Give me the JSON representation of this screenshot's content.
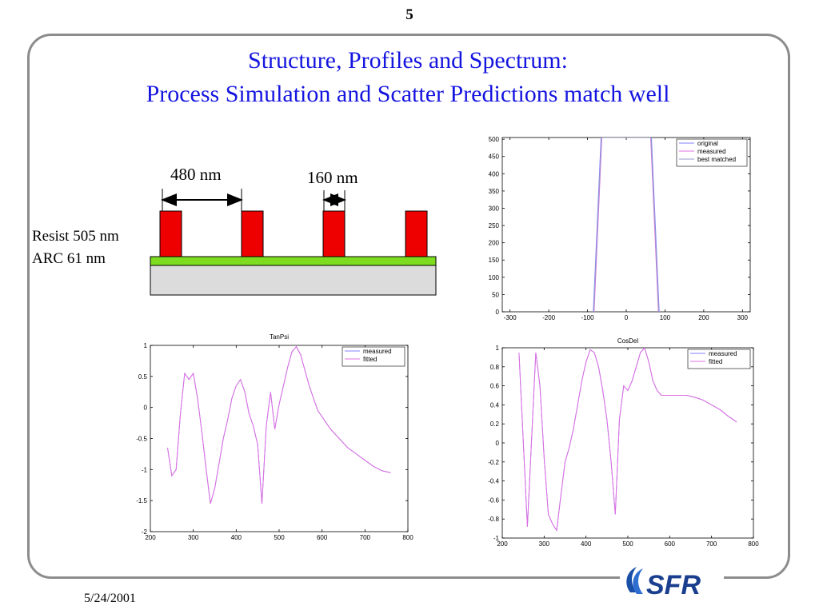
{
  "page_number": "5",
  "title_line1": "Structure, Profiles and Spectrum:",
  "title_line2": "Process Simulation and Scatter Predictions match well",
  "footer_date": "5/24/2001",
  "logo_text": "SFR",
  "structure": {
    "pitch_label": "480 nm",
    "width_label": "160 nm",
    "resist_label": "Resist 505 nm",
    "arc_label": "ARC 61 nm",
    "colors": {
      "resist": "#ee0000",
      "arc": "#7ddc1f",
      "substrate": "#dcdcdc"
    }
  },
  "colors": {
    "title": "#1515e0",
    "line_blue": "#8080ff",
    "line_magenta": "#e070e0"
  },
  "chart_data": [
    {
      "type": "line",
      "id": "profile",
      "title": "",
      "xlabel": "",
      "ylabel": "",
      "xlim": [
        -320,
        320
      ],
      "ylim": [
        0,
        505
      ],
      "xticks": [
        -300,
        -200,
        -100,
        0,
        100,
        200,
        300
      ],
      "yticks": [
        0,
        50,
        100,
        150,
        200,
        250,
        300,
        350,
        400,
        450,
        500
      ],
      "legend": "top-right",
      "series": [
        {
          "name": "original",
          "x": [
            -85,
            -65,
            65,
            85
          ],
          "y": [
            0,
            505,
            505,
            0
          ]
        },
        {
          "name": "measured",
          "x": [
            -83,
            -63,
            63,
            83
          ],
          "y": [
            0,
            505,
            505,
            0
          ]
        },
        {
          "name": "best matched",
          "x": [
            -84,
            -64,
            64,
            84
          ],
          "y": [
            0,
            505,
            505,
            0
          ]
        }
      ]
    },
    {
      "type": "line",
      "id": "tanpsi",
      "title": "TanPsi",
      "xlabel": "",
      "ylabel": "",
      "xlim": [
        200,
        800
      ],
      "ylim": [
        -2,
        1
      ],
      "xticks": [
        200,
        300,
        400,
        500,
        600,
        700,
        800
      ],
      "yticks": [
        -2,
        -1.5,
        -1,
        -0.5,
        0,
        0.5,
        1
      ],
      "legend": "top-right",
      "series": [
        {
          "name": "measured",
          "x": [
            240,
            250,
            260,
            270,
            280,
            290,
            300,
            310,
            320,
            330,
            340,
            350,
            360,
            370,
            380,
            390,
            400,
            410,
            420,
            430,
            440,
            450,
            460,
            470,
            480,
            490,
            500,
            510,
            520,
            530,
            540,
            550,
            560,
            570,
            580,
            590,
            600,
            620,
            640,
            660,
            680,
            700,
            720,
            740,
            760
          ],
          "y": [
            -0.65,
            -1.1,
            -1.0,
            -0.1,
            0.55,
            0.45,
            0.55,
            0.15,
            -0.4,
            -1.0,
            -1.55,
            -1.3,
            -0.9,
            -0.5,
            -0.2,
            0.15,
            0.35,
            0.45,
            0.25,
            -0.1,
            -0.3,
            -0.6,
            -1.55,
            -0.3,
            0.25,
            -0.35,
            0.05,
            0.35,
            0.65,
            0.9,
            0.98,
            0.85,
            0.6,
            0.35,
            0.15,
            -0.05,
            -0.15,
            -0.35,
            -0.5,
            -0.65,
            -0.75,
            -0.85,
            -0.95,
            -1.02,
            -1.05
          ]
        },
        {
          "name": "fitted",
          "x": [
            240,
            250,
            260,
            270,
            280,
            290,
            300,
            310,
            320,
            330,
            340,
            350,
            360,
            370,
            380,
            390,
            400,
            410,
            420,
            430,
            440,
            450,
            460,
            470,
            480,
            490,
            500,
            510,
            520,
            530,
            540,
            550,
            560,
            570,
            580,
            590,
            600,
            620,
            640,
            660,
            680,
            700,
            720,
            740,
            760
          ],
          "y": [
            -0.65,
            -1.1,
            -1.0,
            -0.1,
            0.55,
            0.45,
            0.55,
            0.15,
            -0.4,
            -1.0,
            -1.55,
            -1.3,
            -0.9,
            -0.5,
            -0.2,
            0.15,
            0.35,
            0.45,
            0.25,
            -0.1,
            -0.3,
            -0.6,
            -1.55,
            -0.3,
            0.25,
            -0.35,
            0.05,
            0.35,
            0.65,
            0.9,
            0.98,
            0.85,
            0.6,
            0.35,
            0.15,
            -0.05,
            -0.15,
            -0.35,
            -0.5,
            -0.65,
            -0.75,
            -0.85,
            -0.95,
            -1.02,
            -1.05
          ]
        }
      ]
    },
    {
      "type": "line",
      "id": "cosdel",
      "title": "CosDel",
      "xlabel": "",
      "ylabel": "",
      "xlim": [
        200,
        800
      ],
      "ylim": [
        -1,
        1
      ],
      "xticks": [
        200,
        300,
        400,
        500,
        600,
        700,
        800
      ],
      "yticks": [
        -1,
        -0.8,
        -0.6,
        -0.4,
        -0.2,
        0,
        0.2,
        0.4,
        0.6,
        0.8,
        1
      ],
      "legend": "top-right",
      "series": [
        {
          "name": "measured",
          "x": [
            240,
            260,
            280,
            290,
            300,
            310,
            320,
            330,
            340,
            350,
            360,
            370,
            380,
            390,
            400,
            410,
            420,
            430,
            440,
            450,
            460,
            470,
            480,
            490,
            500,
            510,
            520,
            530,
            540,
            550,
            560,
            570,
            580,
            600,
            620,
            640,
            660,
            680,
            700,
            720,
            740,
            760
          ],
          "y": [
            0.95,
            -0.88,
            0.95,
            0.6,
            -0.15,
            -0.75,
            -0.85,
            -0.92,
            -0.55,
            -0.2,
            -0.05,
            0.15,
            0.4,
            0.65,
            0.85,
            0.98,
            0.95,
            0.8,
            0.55,
            0.25,
            -0.2,
            -0.75,
            0.25,
            0.6,
            0.55,
            0.65,
            0.8,
            0.95,
            1.0,
            0.85,
            0.65,
            0.55,
            0.5,
            0.5,
            0.5,
            0.5,
            0.48,
            0.45,
            0.4,
            0.35,
            0.28,
            0.22
          ]
        },
        {
          "name": "fitted",
          "x": [
            240,
            260,
            280,
            290,
            300,
            310,
            320,
            330,
            340,
            350,
            360,
            370,
            380,
            390,
            400,
            410,
            420,
            430,
            440,
            450,
            460,
            470,
            480,
            490,
            500,
            510,
            520,
            530,
            540,
            550,
            560,
            570,
            580,
            600,
            620,
            640,
            660,
            680,
            700,
            720,
            740,
            760
          ],
          "y": [
            0.95,
            -0.88,
            0.95,
            0.6,
            -0.15,
            -0.75,
            -0.85,
            -0.92,
            -0.55,
            -0.2,
            -0.05,
            0.15,
            0.4,
            0.65,
            0.85,
            0.98,
            0.95,
            0.8,
            0.55,
            0.25,
            -0.2,
            -0.75,
            0.25,
            0.6,
            0.55,
            0.65,
            0.8,
            0.95,
            1.0,
            0.85,
            0.65,
            0.55,
            0.5,
            0.5,
            0.5,
            0.5,
            0.48,
            0.45,
            0.4,
            0.35,
            0.28,
            0.22
          ]
        }
      ]
    }
  ]
}
